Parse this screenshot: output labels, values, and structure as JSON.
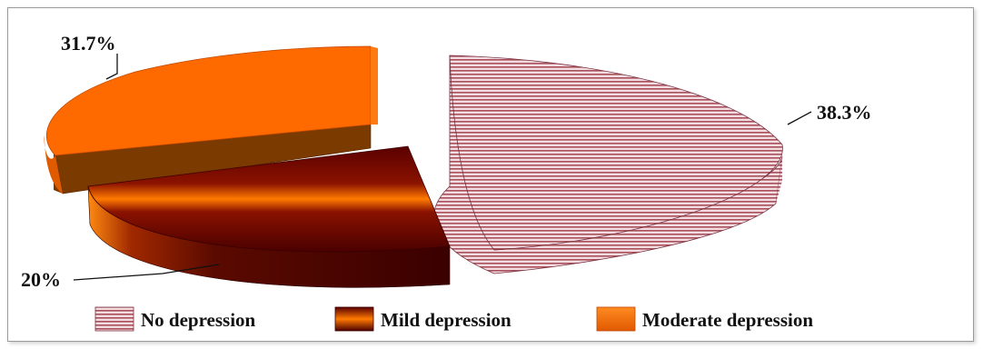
{
  "chart_data": {
    "type": "pie",
    "title": "",
    "categories": [
      "No depression",
      "Mild depression",
      "Moderate depression"
    ],
    "values": [
      38.3,
      20,
      31.7
    ],
    "data_labels": [
      "38.3%",
      "20%",
      "31.7%"
    ],
    "legend": {
      "placement": "bottom",
      "entries": [
        "No depression",
        "Mild depression",
        "Moderate depression"
      ]
    },
    "colors": {
      "no_depression": "#e8c8cc",
      "no_depression_stripe": "#b05a66",
      "mild_depression": "#7a0000",
      "mild_depression_band": "#ff7a00",
      "moderate_depression": "#ff6a00",
      "moderate_depression_side": "#7a3a00"
    },
    "style": "3d-exploded-pie"
  }
}
